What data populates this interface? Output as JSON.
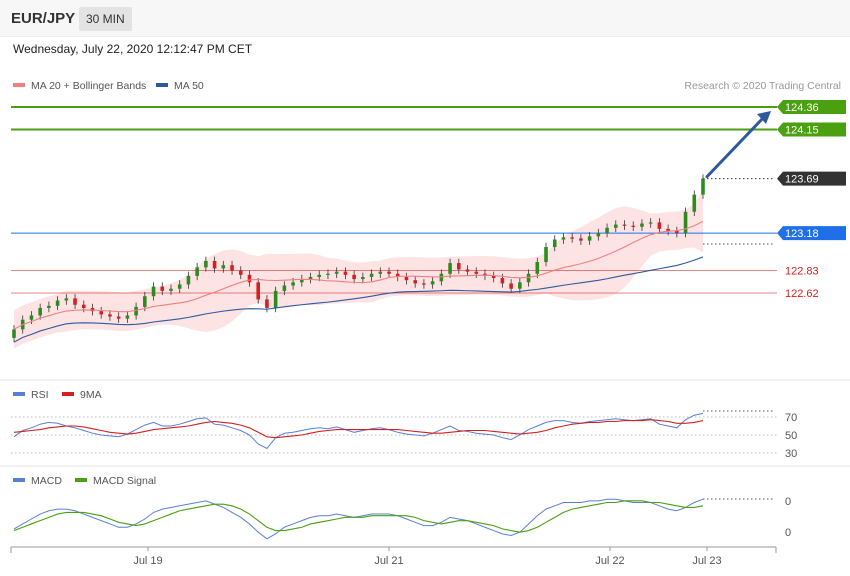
{
  "header": {
    "symbol": "EUR/JPY",
    "timeframe": "30 MIN",
    "datetime": "Wednesday, July 22, 2020 12:12:47 PM CET"
  },
  "legend": {
    "ma20": {
      "label": "MA 20 + Bollinger Bands",
      "color": "#f08080"
    },
    "ma50": {
      "label": "MA 50",
      "color": "#2e5a9c"
    },
    "credit": "Research © 2020 Trading Central"
  },
  "price_levels": [
    {
      "value": 124.36,
      "label": "124.36",
      "kind": "resistance",
      "color": "#4aa010"
    },
    {
      "value": 124.15,
      "label": "124.15",
      "kind": "resistance",
      "color": "#4aa010"
    },
    {
      "value": 123.69,
      "label": "123.69",
      "kind": "last",
      "color": "#333333"
    },
    {
      "value": 123.18,
      "label": "123.18",
      "kind": "pivot",
      "color": "#1f6fe8"
    },
    {
      "value": 122.83,
      "label": "122.83",
      "kind": "support",
      "color": "#d42020"
    },
    {
      "value": 122.62,
      "label": "122.62",
      "kind": "support",
      "color": "#d42020"
    }
  ],
  "rsi_panel": {
    "legend": [
      {
        "label": "RSI",
        "color": "#5a7fd6"
      },
      {
        "label": "9MA",
        "color": "#d42020"
      }
    ],
    "levels": [
      "70",
      "50",
      "30"
    ]
  },
  "macd_panel": {
    "legend": [
      {
        "label": "MACD",
        "color": "#5a7fd6"
      },
      {
        "label": "MACD Signal",
        "color": "#4aa010"
      }
    ],
    "levels": [
      "0",
      "0"
    ]
  },
  "x_axis": {
    "labels": [
      "Jul 19",
      "Jul 21",
      "Jul 22",
      "Jul 23"
    ]
  },
  "chart_data": {
    "type": "candlestick",
    "y_axis_ticks": [
      124.36,
      124.15,
      123.69,
      123.18,
      122.83,
      122.62
    ],
    "close": [
      122.28,
      122.37,
      122.41,
      122.48,
      122.5,
      122.55,
      122.57,
      122.51,
      122.48,
      122.45,
      122.42,
      122.4,
      122.38,
      122.41,
      122.49,
      122.59,
      122.68,
      122.64,
      122.66,
      122.7,
      122.78,
      122.86,
      122.92,
      122.85,
      122.88,
      122.83,
      122.79,
      122.72,
      122.56,
      122.48,
      122.64,
      122.69,
      122.72,
      122.75,
      122.77,
      122.79,
      122.8,
      122.82,
      122.79,
      122.75,
      122.77,
      122.8,
      122.82,
      122.8,
      122.77,
      122.74,
      122.71,
      122.7,
      122.73,
      122.8,
      122.9,
      122.84,
      122.82,
      122.8,
      122.78,
      122.76,
      122.71,
      122.66,
      122.72,
      122.8,
      122.91,
      123.05,
      123.12,
      123.14,
      123.13,
      123.11,
      123.15,
      123.18,
      123.23,
      123.26,
      123.25,
      123.24,
      123.27,
      123.28,
      123.22,
      123.2,
      123.18,
      123.38,
      123.54,
      123.69
    ],
    "rsi": [
      48,
      55,
      58,
      62,
      64,
      63,
      60,
      58,
      55,
      52,
      50,
      49,
      48,
      51,
      56,
      61,
      64,
      60,
      60,
      62,
      65,
      68,
      69,
      62,
      61,
      58,
      55,
      50,
      40,
      35,
      47,
      52,
      53,
      55,
      57,
      58,
      57,
      59,
      56,
      53,
      55,
      57,
      58,
      56,
      53,
      51,
      50,
      49,
      52,
      56,
      60,
      55,
      54,
      52,
      51,
      50,
      47,
      45,
      50,
      56,
      60,
      64,
      66,
      66,
      64,
      63,
      65,
      66,
      67,
      68,
      67,
      66,
      67,
      68,
      62,
      60,
      58,
      67,
      72,
      74
    ],
    "rsi_ma": [
      53,
      54,
      55,
      56,
      58,
      59,
      60,
      60,
      59,
      57,
      55,
      53,
      52,
      51,
      52,
      54,
      56,
      57,
      58,
      59,
      60,
      62,
      64,
      65,
      64,
      63,
      61,
      58,
      53,
      48,
      47,
      48,
      49,
      50,
      52,
      54,
      55,
      56,
      56,
      56,
      56,
      56,
      56,
      56,
      56,
      55,
      54,
      53,
      52,
      52,
      53,
      54,
      55,
      55,
      55,
      54,
      53,
      52,
      51,
      52,
      53,
      55,
      58,
      60,
      62,
      63,
      64,
      64,
      65,
      65,
      66,
      66,
      66,
      67,
      66,
      65,
      63,
      63,
      64,
      66
    ],
    "macd": [
      -0.06,
      -0.03,
      0.0,
      0.03,
      0.05,
      0.06,
      0.06,
      0.05,
      0.03,
      0.01,
      -0.01,
      -0.03,
      -0.05,
      -0.05,
      -0.03,
      0.0,
      0.04,
      0.06,
      0.07,
      0.08,
      0.09,
      0.1,
      0.11,
      0.09,
      0.07,
      0.04,
      0.01,
      -0.03,
      -0.08,
      -0.12,
      -0.09,
      -0.05,
      -0.03,
      -0.01,
      0.01,
      0.02,
      0.02,
      0.03,
      0.02,
      0.01,
      0.02,
      0.03,
      0.03,
      0.03,
      0.02,
      0.0,
      -0.02,
      -0.04,
      -0.04,
      -0.02,
      0.01,
      0.0,
      -0.01,
      -0.03,
      -0.05,
      -0.07,
      -0.09,
      -0.1,
      -0.08,
      -0.03,
      0.02,
      0.06,
      0.08,
      0.1,
      0.1,
      0.1,
      0.11,
      0.11,
      0.12,
      0.12,
      0.11,
      0.1,
      0.1,
      0.1,
      0.08,
      0.06,
      0.05,
      0.07,
      0.1,
      0.12
    ],
    "macd_signal": [
      -0.07,
      -0.05,
      -0.03,
      -0.01,
      0.01,
      0.03,
      0.04,
      0.04,
      0.04,
      0.03,
      0.02,
      0.0,
      -0.02,
      -0.03,
      -0.04,
      -0.03,
      -0.01,
      0.01,
      0.03,
      0.05,
      0.06,
      0.07,
      0.08,
      0.09,
      0.09,
      0.08,
      0.06,
      0.03,
      -0.01,
      -0.05,
      -0.07,
      -0.07,
      -0.06,
      -0.05,
      -0.03,
      -0.02,
      -0.01,
      0.0,
      0.01,
      0.01,
      0.01,
      0.02,
      0.02,
      0.02,
      0.02,
      0.02,
      0.01,
      -0.01,
      -0.02,
      -0.03,
      -0.02,
      -0.01,
      -0.01,
      -0.02,
      -0.03,
      -0.04,
      -0.06,
      -0.07,
      -0.08,
      -0.07,
      -0.05,
      -0.02,
      0.01,
      0.04,
      0.06,
      0.07,
      0.08,
      0.09,
      0.1,
      0.1,
      0.11,
      0.11,
      0.11,
      0.1,
      0.1,
      0.09,
      0.08,
      0.07,
      0.07,
      0.08
    ],
    "forecast_arrow": {
      "from": 123.69,
      "to": 124.36
    }
  }
}
